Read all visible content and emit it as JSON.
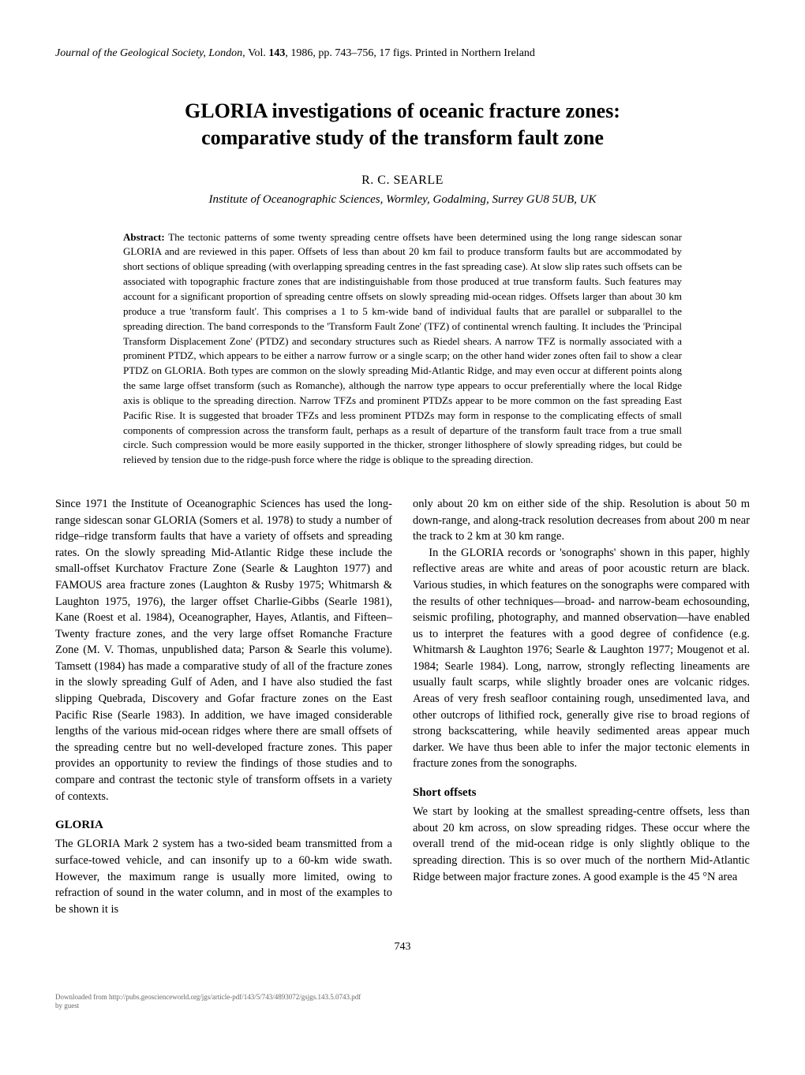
{
  "journal_header": {
    "journal_name": "Journal of the Geological Society, London, ",
    "volume_prefix": "Vol. ",
    "volume": "143",
    "year_pages": ", 1986, pp. 743–756, 17 figs. Printed in Northern Ireland"
  },
  "title": {
    "line1": "GLORIA investigations of oceanic fracture zones:",
    "line2": "comparative study of the transform fault zone"
  },
  "author": "R. C. SEARLE",
  "affiliation": "Institute of Oceanographic Sciences, Wormley, Godalming, Surrey GU8 5UB, UK",
  "abstract": {
    "label": "Abstract:",
    "text": " The tectonic patterns of some twenty spreading centre offsets have been determined using the long range sidescan sonar GLORIA and are reviewed in this paper. Offsets of less than about 20 km fail to produce transform faults but are accommodated by short sections of oblique spreading (with overlapping spreading centres in the fast spreading case). At slow slip rates such offsets can be associated with topographic fracture zones that are indistinguishable from those produced at true transform faults. Such features may account for a significant proportion of spreading centre offsets on slowly spreading mid-ocean ridges. Offsets larger than about 30 km produce a true 'transform fault'. This comprises a 1 to 5 km-wide band of individual faults that are parallel or subparallel to the spreading direction. The band corresponds to the 'Transform Fault Zone' (TFZ) of continental wrench faulting. It includes the 'Principal Transform Displacement Zone' (PTDZ) and secondary structures such as Riedel shears. A narrow TFZ is normally associated with a prominent PTDZ, which appears to be either a narrow furrow or a single scarp; on the other hand wider zones often fail to show a clear PTDZ on GLORIA. Both types are common on the slowly spreading Mid-Atlantic Ridge, and may even occur at different points along the same large offset transform (such as Romanche), although the narrow type appears to occur preferentially where the local Ridge axis is oblique to the spreading direction. Narrow TFZs and prominent PTDZs appear to be more common on the fast spreading East Pacific Rise. It is suggested that broader TFZs and less prominent PTDZs may form in response to the complicating effects of small components of compression across the transform fault, perhaps as a result of departure of the transform fault trace from a true small circle. Such compression would be more easily supported in the thicker, stronger lithosphere of slowly spreading ridges, but could be relieved by tension due to the ridge-push force where the ridge is oblique to the spreading direction."
  },
  "body": {
    "left": {
      "p1": "Since 1971 the Institute of Oceanographic Sciences has used the long-range sidescan sonar GLORIA (Somers et al. 1978) to study a number of ridge–ridge transform faults that have a variety of offsets and spreading rates. On the slowly spreading Mid-Atlantic Ridge these include the small-offset Kurchatov Fracture Zone (Searle & Laughton 1977) and FAMOUS area fracture zones (Laughton & Rusby 1975; Whitmarsh & Laughton 1975, 1976), the larger offset Charlie-Gibbs (Searle 1981), Kane (Roest et al. 1984), Oceanographer, Hayes, Atlantis, and Fifteen–Twenty fracture zones, and the very large offset Romanche Fracture Zone (M. V. Thomas, unpublished data; Parson & Searle this volume). Tamsett (1984) has made a comparative study of all of the fracture zones in the slowly spreading Gulf of Aden, and I have also studied the fast slipping Quebrada, Discovery and Gofar fracture zones on the East Pacific Rise (Searle 1983). In addition, we have imaged considerable lengths of the various mid-ocean ridges where there are small offsets of the spreading centre but no well-developed fracture zones. This paper provides an opportunity to review the findings of those studies and to compare and contrast the tectonic style of transform offsets in a variety of contexts.",
      "heading_gloria": "GLORIA",
      "p2": "The GLORIA Mark 2 system has a two-sided beam transmitted from a surface-towed vehicle, and can insonify up to a 60-km wide swath. However, the maximum range is usually more limited, owing to refraction of sound in the water column, and in most of the examples to be shown it is"
    },
    "right": {
      "p1": "only about 20 km on either side of the ship. Resolution is about 50 m down-range, and along-track resolution decreases from about 200 m near the track to 2 km at 30 km range.",
      "p2": "In the GLORIA records or 'sonographs' shown in this paper, highly reflective areas are white and areas of poor acoustic return are black. Various studies, in which features on the sonographs were compared with the results of other techniques—broad- and narrow-beam echosounding, seismic profiling, photography, and manned observation—have enabled us to interpret the features with a good degree of confidence (e.g. Whitmarsh & Laughton 1976; Searle & Laughton 1977; Mougenot et al. 1984; Searle 1984). Long, narrow, strongly reflecting lineaments are usually fault scarps, while slightly broader ones are volcanic ridges. Areas of very fresh seafloor containing rough, unsedimented lava, and other outcrops of lithified rock, generally give rise to broad regions of strong backscattering, while heavily sedimented areas appear much darker. We have thus been able to infer the major tectonic elements in fracture zones from the sonographs.",
      "heading_short": "Short offsets",
      "p3": "We start by looking at the smallest spreading-centre offsets, less than about 20 km across, on slow spreading ridges. These occur where the overall trend of the mid-ocean ridge is only slightly oblique to the spreading direction. This is so over much of the northern Mid-Atlantic Ridge between major fracture zones. A good example is the 45 °N area"
    }
  },
  "page_number": "743",
  "footer": {
    "line1": "Downloaded from http://pubs.geoscienceworld.org/jgs/article-pdf/143/5/743/4893072/gsjgs.143.5.0743.pdf",
    "line2": "by guest"
  }
}
